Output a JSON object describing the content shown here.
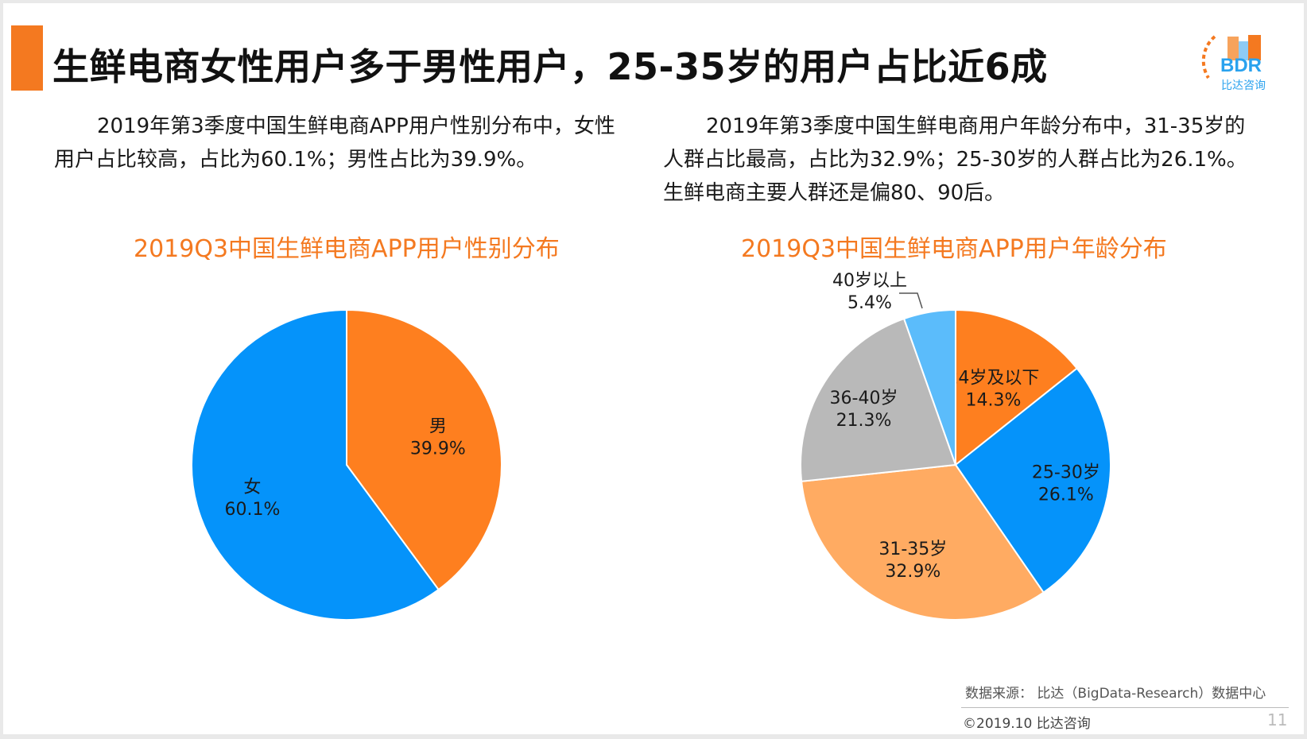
{
  "title": "生鲜电商女性用户多于男性用户，25-35岁的用户占比近6成",
  "logo": {
    "text": "BDR",
    "subtext": "比达咨询"
  },
  "left_description": "2019年第3季度中国生鲜电商APP用户性别分布中，女性用户占比较高，占比为60.1%；男性占比为39.9%。",
  "right_description": "2019年第3季度中国生鲜电商用户年龄分布中，31-35岁的人群占比最高，占比为32.9%；25-30岁的人群占比为26.1%。生鲜电商主要人群还是偏80、90后。",
  "chart_data": [
    {
      "type": "pie",
      "title": "2019Q3中国生鲜电商APP用户性别分布",
      "slices": [
        {
          "label": "男",
          "value": 39.9,
          "display": "39.9%",
          "color": "#fe7f1f"
        },
        {
          "label": "女",
          "value": 60.1,
          "display": "60.1%",
          "color": "#0593fa"
        }
      ]
    },
    {
      "type": "pie",
      "title": "2019Q3中国生鲜电商APP用户年龄分布",
      "slices": [
        {
          "label": "24岁及以下",
          "value": 14.3,
          "display": "14.3%",
          "color": "#fe7f1f"
        },
        {
          "label": "25-30岁",
          "value": 26.1,
          "display": "26.1%",
          "color": "#0593fa"
        },
        {
          "label": "31-35岁",
          "value": 32.9,
          "display": "32.9%",
          "color": "#ffab62"
        },
        {
          "label": "36-40岁",
          "value": 21.3,
          "display": "21.3%",
          "color": "#b9b9b9"
        },
        {
          "label": "40岁以上",
          "value": 5.4,
          "display": "5.4%",
          "color": "#5bbcfb"
        }
      ]
    }
  ],
  "source": "数据来源： 比达（BigData-Research）数据中心",
  "copyright": "©2019.10  比达咨询",
  "page_number": "11"
}
